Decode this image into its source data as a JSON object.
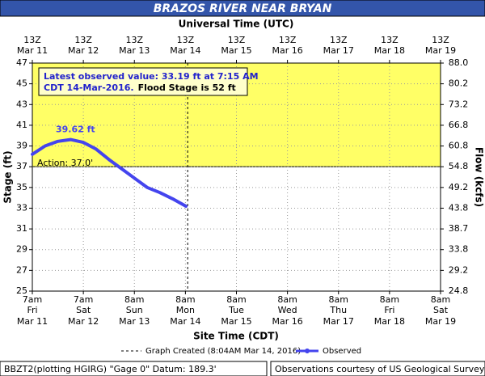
{
  "chart_data": {
    "type": "line",
    "title": "BRAZOS RIVER NEAR BRYAN",
    "top_axis_label": "Universal Time (UTC)",
    "x_label": "Site Time (CDT)",
    "y_label": "Stage (ft)",
    "y2_label": "Flow (kcfs)",
    "xlim": [
      "2016-03-11 07:00",
      "2016-03-19 07:00"
    ],
    "xticks": [
      {
        "value": "2016-03-11 07:00",
        "time": "7am",
        "day": "Fri",
        "date": "Mar 11"
      },
      {
        "value": "2016-03-12 07:00",
        "time": "7am",
        "day": "Sat",
        "date": "Mar 12"
      },
      {
        "value": "2016-03-13 07:00",
        "time": "8am",
        "day": "Sun",
        "date": "Mar 13"
      },
      {
        "value": "2016-03-14 07:00",
        "time": "8am",
        "day": "Mon",
        "date": "Mar 14"
      },
      {
        "value": "2016-03-15 07:00",
        "time": "8am",
        "day": "Tue",
        "date": "Mar 15"
      },
      {
        "value": "2016-03-16 07:00",
        "time": "8am",
        "day": "Wed",
        "date": "Mar 16"
      },
      {
        "value": "2016-03-17 07:00",
        "time": "8am",
        "day": "Thu",
        "date": "Mar 17"
      },
      {
        "value": "2016-03-18 07:00",
        "time": "8am",
        "day": "Fri",
        "date": "Mar 18"
      },
      {
        "value": "2016-03-19 07:00",
        "time": "8am",
        "day": "Sat",
        "date": "Mar 19"
      }
    ],
    "top_xticks": [
      {
        "value": "2016-03-11 07:00",
        "time": "13Z",
        "date": "Mar 11"
      },
      {
        "value": "2016-03-12 07:00",
        "time": "13Z",
        "date": "Mar 12"
      },
      {
        "value": "2016-03-13 07:00",
        "time": "13Z",
        "date": "Mar 13"
      },
      {
        "value": "2016-03-14 07:00",
        "time": "13Z",
        "date": "Mar 14"
      },
      {
        "value": "2016-03-15 07:00",
        "time": "13Z",
        "date": "Mar 15"
      },
      {
        "value": "2016-03-16 07:00",
        "time": "13Z",
        "date": "Mar 16"
      },
      {
        "value": "2016-03-17 07:00",
        "time": "13Z",
        "date": "Mar 17"
      },
      {
        "value": "2016-03-18 07:00",
        "time": "13Z",
        "date": "Mar 18"
      },
      {
        "value": "2016-03-19 07:00",
        "time": "13Z",
        "date": "Mar 19"
      }
    ],
    "ylim": [
      25,
      47
    ],
    "yticks": [
      25,
      27,
      29,
      31,
      33,
      35,
      37,
      39,
      41,
      43,
      45,
      47
    ],
    "y2ticks": [
      24.8,
      29.2,
      33.8,
      38.7,
      43.8,
      49.2,
      54.8,
      60.8,
      66.8,
      73.2,
      80.2,
      {
        "value": 88,
        "label": "88.0"
      }
    ],
    "grid": true,
    "action_stage": 37,
    "action_label": "Action: 37.0'",
    "action_color": "#ffff66",
    "x": [
      "2016-03-11 07:00",
      "2016-03-11 13:00",
      "2016-03-11 19:00",
      "2016-03-12 01:00",
      "2016-03-12 07:00",
      "2016-03-12 13:00",
      "2016-03-12 19:00",
      "2016-03-13 01:00",
      "2016-03-13 07:00",
      "2016-03-13 13:00",
      "2016-03-13 19:00",
      "2016-03-14 01:00",
      "2016-03-14 07:15"
    ],
    "series": [
      {
        "name": "Observed",
        "color": "#4444ee",
        "values": [
          38.2,
          39.0,
          39.45,
          39.62,
          39.35,
          38.7,
          37.7,
          36.8,
          35.9,
          35.0,
          34.5,
          33.9,
          33.19
        ]
      }
    ],
    "peak_label": {
      "text": "39.62 ft",
      "index": 3
    },
    "graph_created": {
      "x": "2016-03-14 08:04",
      "name": "Graph Created (8:04AM Mar 14, 2016)"
    },
    "latest_box": {
      "line1": "Latest observed value: 33.19 ft at 7:15 AM",
      "line2": "CDT 14-Mar-2016.",
      "flood": "Flood Stage is 52 ft"
    },
    "footer_left": "BBZT2(plotting HGIRG) \"Gage 0\" Datum: 189.3'",
    "footer_right": "Observations courtesy of US Geological Survey"
  }
}
